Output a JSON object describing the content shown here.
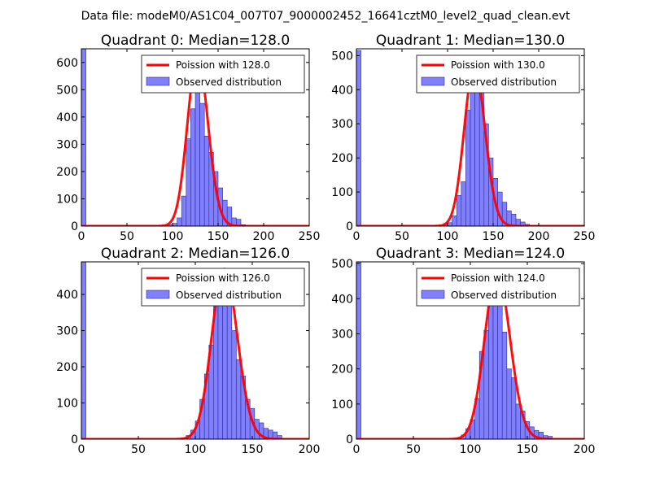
{
  "figure": {
    "suptitle": "Data file: modeM0/AS1C04_007T07_9000002452_16641cztM0_level2_quad_clean.evt"
  },
  "colors": {
    "bar_fill": "#7f7fff",
    "bar_stroke": "#2e2e8a",
    "curve": "#ff0000",
    "frame": "#000000",
    "legend_frame": "#333333"
  },
  "chart_data": [
    {
      "type": "bar",
      "title": "Quadrant 0: Median=128.0",
      "xlim": [
        0,
        250
      ],
      "ylim": [
        0,
        650
      ],
      "xticks": [
        0,
        50,
        100,
        150,
        200,
        250
      ],
      "yticks": [
        0,
        100,
        200,
        300,
        400,
        500,
        600
      ],
      "bin_width": 5,
      "bins": [
        {
          "x0": 0,
          "count": 650
        },
        {
          "x0": 95,
          "count": 5
        },
        {
          "x0": 100,
          "count": 10
        },
        {
          "x0": 105,
          "count": 30
        },
        {
          "x0": 110,
          "count": 110
        },
        {
          "x0": 115,
          "count": 320
        },
        {
          "x0": 120,
          "count": 430
        },
        {
          "x0": 125,
          "count": 510
        },
        {
          "x0": 130,
          "count": 450
        },
        {
          "x0": 135,
          "count": 330
        },
        {
          "x0": 140,
          "count": 270
        },
        {
          "x0": 145,
          "count": 200
        },
        {
          "x0": 150,
          "count": 140
        },
        {
          "x0": 155,
          "count": 95
        },
        {
          "x0": 160,
          "count": 70
        },
        {
          "x0": 165,
          "count": 30
        },
        {
          "x0": 170,
          "count": 25
        },
        {
          "x0": 175,
          "count": 5
        }
      ],
      "poisson": {
        "label": "Poission with 128.0",
        "mean": 128.0,
        "peak": 620
      },
      "observed_label": "Observed distribution"
    },
    {
      "type": "bar",
      "title": "Quadrant 1: Median=130.0",
      "xlim": [
        0,
        250
      ],
      "ylim": [
        0,
        520
      ],
      "xticks": [
        0,
        50,
        100,
        150,
        200,
        250
      ],
      "yticks": [
        0,
        100,
        200,
        300,
        400,
        500
      ],
      "bin_width": 5,
      "bins": [
        {
          "x0": 0,
          "count": 515
        },
        {
          "x0": 95,
          "count": 5
        },
        {
          "x0": 100,
          "count": 10
        },
        {
          "x0": 105,
          "count": 30
        },
        {
          "x0": 110,
          "count": 90
        },
        {
          "x0": 115,
          "count": 130
        },
        {
          "x0": 120,
          "count": 340
        },
        {
          "x0": 125,
          "count": 440
        },
        {
          "x0": 130,
          "count": 450
        },
        {
          "x0": 135,
          "count": 400
        },
        {
          "x0": 140,
          "count": 300
        },
        {
          "x0": 145,
          "count": 200
        },
        {
          "x0": 150,
          "count": 140
        },
        {
          "x0": 155,
          "count": 100
        },
        {
          "x0": 160,
          "count": 70
        },
        {
          "x0": 165,
          "count": 45
        },
        {
          "x0": 170,
          "count": 35
        },
        {
          "x0": 175,
          "count": 20
        },
        {
          "x0": 180,
          "count": 12
        },
        {
          "x0": 185,
          "count": 5
        }
      ],
      "poisson": {
        "label": "Poission with 130.0",
        "mean": 130.0,
        "peak": 470
      },
      "observed_label": "Observed distribution"
    },
    {
      "type": "bar",
      "title": "Quadrant 2: Median=126.0",
      "xlim": [
        0,
        200
      ],
      "ylim": [
        0,
        490
      ],
      "xticks": [
        0,
        50,
        100,
        150,
        200
      ],
      "yticks": [
        0,
        100,
        200,
        300,
        400
      ],
      "bin_width": 4,
      "bins": [
        {
          "x0": 0,
          "count": 490
        },
        {
          "x0": 88,
          "count": 3
        },
        {
          "x0": 92,
          "count": 10
        },
        {
          "x0": 96,
          "count": 25
        },
        {
          "x0": 100,
          "count": 50
        },
        {
          "x0": 104,
          "count": 110
        },
        {
          "x0": 108,
          "count": 180
        },
        {
          "x0": 112,
          "count": 260
        },
        {
          "x0": 116,
          "count": 370
        },
        {
          "x0": 120,
          "count": 400
        },
        {
          "x0": 124,
          "count": 460
        },
        {
          "x0": 128,
          "count": 370
        },
        {
          "x0": 132,
          "count": 300
        },
        {
          "x0": 136,
          "count": 220
        },
        {
          "x0": 140,
          "count": 175
        },
        {
          "x0": 144,
          "count": 110
        },
        {
          "x0": 148,
          "count": 85
        },
        {
          "x0": 152,
          "count": 55
        },
        {
          "x0": 156,
          "count": 45
        },
        {
          "x0": 160,
          "count": 30
        },
        {
          "x0": 164,
          "count": 25
        },
        {
          "x0": 168,
          "count": 20
        },
        {
          "x0": 172,
          "count": 10
        }
      ],
      "poisson": {
        "label": "Poission with 126.0",
        "mean": 126.0,
        "peak": 470
      },
      "observed_label": "Observed distribution"
    },
    {
      "type": "bar",
      "title": "Quadrant 3: Median=124.0",
      "xlim": [
        0,
        200
      ],
      "ylim": [
        0,
        505
      ],
      "xticks": [
        0,
        50,
        100,
        150,
        200
      ],
      "yticks": [
        0,
        100,
        200,
        300,
        400,
        500
      ],
      "bin_width": 4,
      "bins": [
        {
          "x0": 0,
          "count": 505
        },
        {
          "x0": 88,
          "count": 3
        },
        {
          "x0": 92,
          "count": 12
        },
        {
          "x0": 96,
          "count": 30
        },
        {
          "x0": 100,
          "count": 55
        },
        {
          "x0": 104,
          "count": 115
        },
        {
          "x0": 108,
          "count": 250
        },
        {
          "x0": 112,
          "count": 310
        },
        {
          "x0": 116,
          "count": 380
        },
        {
          "x0": 120,
          "count": 440
        },
        {
          "x0": 124,
          "count": 480
        },
        {
          "x0": 128,
          "count": 305
        },
        {
          "x0": 132,
          "count": 200
        },
        {
          "x0": 136,
          "count": 175
        },
        {
          "x0": 140,
          "count": 100
        },
        {
          "x0": 144,
          "count": 80
        },
        {
          "x0": 148,
          "count": 50
        },
        {
          "x0": 152,
          "count": 35
        },
        {
          "x0": 156,
          "count": 25
        },
        {
          "x0": 160,
          "count": 20
        },
        {
          "x0": 164,
          "count": 10
        },
        {
          "x0": 168,
          "count": 8
        }
      ],
      "poisson": {
        "label": "Poission with 124.0",
        "mean": 124.0,
        "peak": 475
      },
      "observed_label": "Observed distribution"
    }
  ]
}
